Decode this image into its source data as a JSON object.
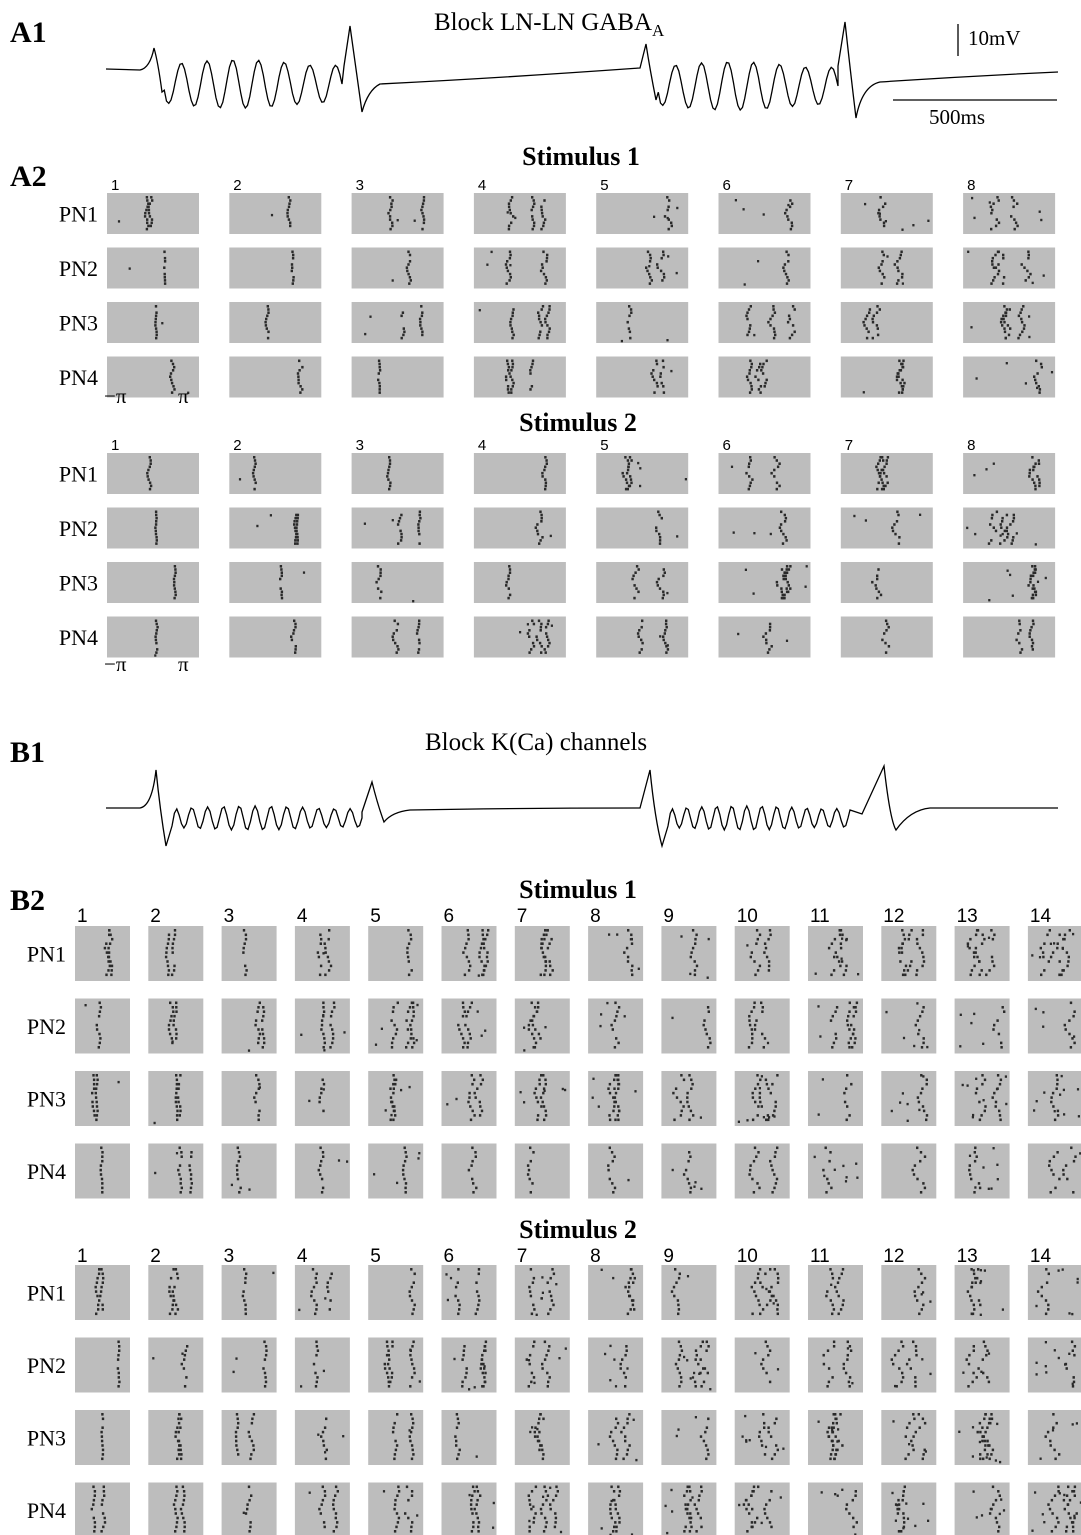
{
  "panels": {
    "a1": {
      "label": "A1",
      "title_main": "Block LN-LN GABA",
      "title_sub": "A",
      "scale_voltage": "10mV",
      "scale_time": "500ms"
    },
    "a2": {
      "label": "A2",
      "stimuli": [
        "Stimulus 1",
        "Stimulus 2"
      ],
      "rows": [
        "PN1",
        "PN2",
        "PN3",
        "PN4"
      ],
      "columns": [
        "1",
        "2",
        "3",
        "4",
        "5",
        "6",
        "7",
        "8"
      ],
      "phase_axis": [
        "−π",
        "π"
      ]
    },
    "b1": {
      "label": "B1",
      "title": "Block K(Ca) channels"
    },
    "b2": {
      "label": "B2",
      "stimuli": [
        "Stimulus 1",
        "Stimulus 2"
      ],
      "rows": [
        "PN1",
        "PN2",
        "PN3",
        "PN4"
      ],
      "columns": [
        "1",
        "2",
        "3",
        "4",
        "5",
        "6",
        "7",
        "8",
        "9",
        "10",
        "11",
        "12",
        "13",
        "14"
      ]
    }
  },
  "colors": {
    "raster_background": "#bdbdbd",
    "spike": "#2a2a2a",
    "trace": "#000000"
  }
}
